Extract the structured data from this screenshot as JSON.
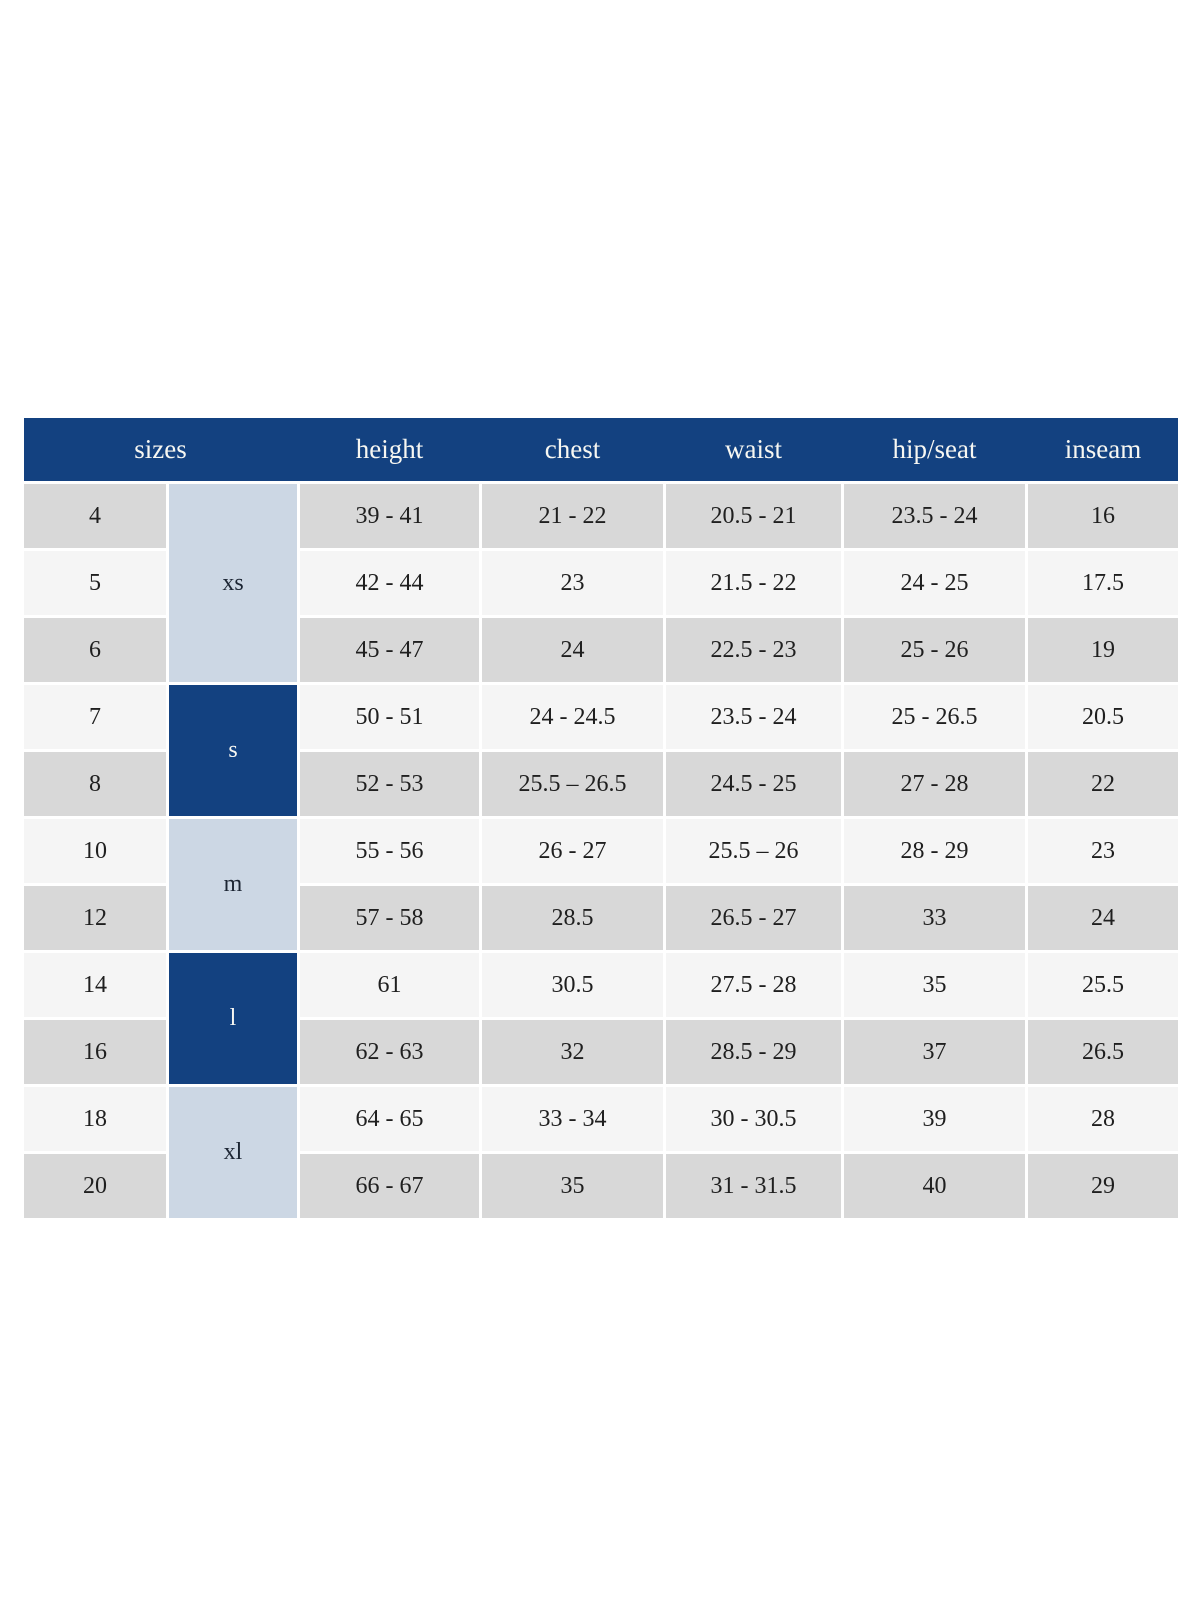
{
  "page": {
    "background": "#ffffff"
  },
  "table": {
    "colors": {
      "header_bg": "#134180",
      "header_text": "#f7f7f2",
      "body_text": "#1f1f1f",
      "row_gray": "#d8d8d8",
      "row_light": "#f5f5f5",
      "group_light_blue_bg": "#ccd7e4",
      "group_light_blue_text": "#1c2533",
      "group_navy_bg": "#134180",
      "group_navy_text": "#f7f7f2"
    },
    "headers": [
      "sizes",
      "height",
      "chest",
      "waist",
      "hip/seat",
      "inseam"
    ],
    "groups": [
      {
        "label": "xs",
        "rows": 3,
        "variant": "light-blue"
      },
      {
        "label": "s",
        "rows": 2,
        "variant": "navy"
      },
      {
        "label": "m",
        "rows": 2,
        "variant": "light-blue"
      },
      {
        "label": "l",
        "rows": 2,
        "variant": "navy"
      },
      {
        "label": "xl",
        "rows": 2,
        "variant": "light-blue"
      }
    ],
    "rows": [
      {
        "size": "4",
        "height": "39 - 41",
        "chest": "21 - 22",
        "waist": "20.5 - 21",
        "hip_seat": "23.5 - 24",
        "inseam": "16",
        "shade": "gray"
      },
      {
        "size": "5",
        "height": "42 - 44",
        "chest": "23",
        "waist": "21.5 - 22",
        "hip_seat": "24 - 25",
        "inseam": "17.5",
        "shade": "light"
      },
      {
        "size": "6",
        "height": "45 - 47",
        "chest": "24",
        "waist": "22.5 - 23",
        "hip_seat": "25 - 26",
        "inseam": "19",
        "shade": "gray"
      },
      {
        "size": "7",
        "height": "50 - 51",
        "chest": "24 - 24.5",
        "waist": "23.5 - 24",
        "hip_seat": "25 - 26.5",
        "inseam": "20.5",
        "shade": "light"
      },
      {
        "size": "8",
        "height": "52 - 53",
        "chest": "25.5 – 26.5",
        "waist": "24.5 - 25",
        "hip_seat": "27 - 28",
        "inseam": "22",
        "shade": "gray"
      },
      {
        "size": "10",
        "height": "55 - 56",
        "chest": "26 - 27",
        "waist": "25.5 – 26",
        "hip_seat": "28 - 29",
        "inseam": "23",
        "shade": "light"
      },
      {
        "size": "12",
        "height": "57 - 58",
        "chest": "28.5",
        "waist": "26.5 - 27",
        "hip_seat": "33",
        "inseam": "24",
        "shade": "gray"
      },
      {
        "size": "14",
        "height": "61",
        "chest": "30.5",
        "waist": "27.5 - 28",
        "hip_seat": "35",
        "inseam": "25.5",
        "shade": "light"
      },
      {
        "size": "16",
        "height": "62 - 63",
        "chest": "32",
        "waist": "28.5 - 29",
        "hip_seat": "37",
        "inseam": "26.5",
        "shade": "gray"
      },
      {
        "size": "18",
        "height": "64 - 65",
        "chest": "33 - 34",
        "waist": "30 - 30.5",
        "hip_seat": "39",
        "inseam": "28",
        "shade": "light"
      },
      {
        "size": "20",
        "height": "66 - 67",
        "chest": "35",
        "waist": "31 - 31.5",
        "hip_seat": "40",
        "inseam": "29",
        "shade": "gray"
      }
    ]
  }
}
